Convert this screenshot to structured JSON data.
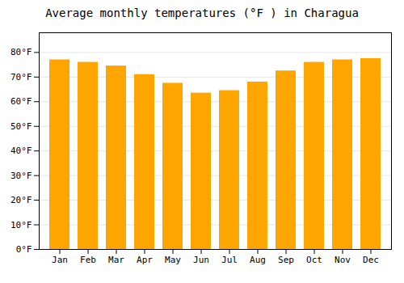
{
  "chart_data": {
    "type": "bar",
    "title": "Average monthly temperatures (°F ) in Charagua",
    "categories": [
      "Jan",
      "Feb",
      "Mar",
      "Apr",
      "May",
      "Jun",
      "Jul",
      "Aug",
      "Sep",
      "Oct",
      "Nov",
      "Dec"
    ],
    "values": [
      77,
      76,
      74.5,
      71,
      67.5,
      63.5,
      64.5,
      68,
      72.5,
      76,
      77,
      77.5
    ],
    "color": "#FFA500",
    "ylim": [
      0,
      88
    ],
    "yticks": [
      {
        "value": 0,
        "label": "0°F"
      },
      {
        "value": 10,
        "label": "10°F"
      },
      {
        "value": 20,
        "label": "20°F"
      },
      {
        "value": 30,
        "label": "30°F"
      },
      {
        "value": 40,
        "label": "40°F"
      },
      {
        "value": 50,
        "label": "50°F"
      },
      {
        "value": 60,
        "label": "60°F"
      },
      {
        "value": 70,
        "label": "70°F"
      },
      {
        "value": 80,
        "label": "80°F"
      }
    ],
    "grid": true
  }
}
